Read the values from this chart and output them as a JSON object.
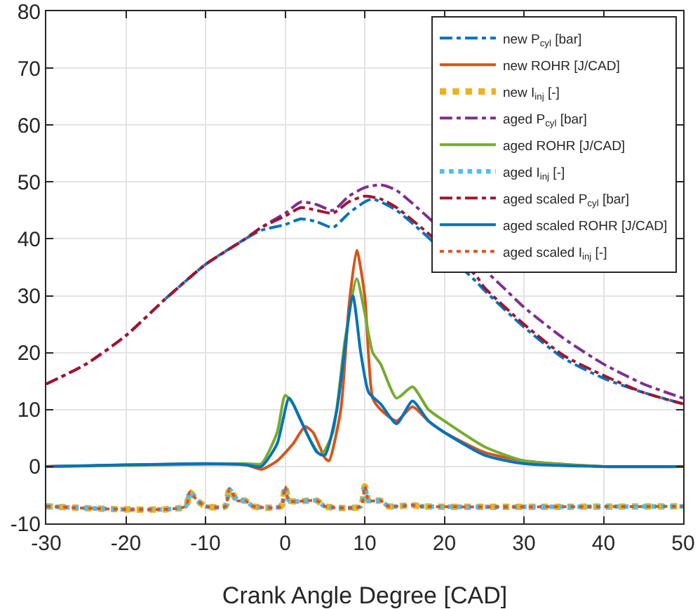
{
  "chart_data": {
    "type": "line",
    "xlabel": "Crank Angle Degree [CAD]",
    "xlim": [
      -30,
      50
    ],
    "xticks": [
      -30,
      -20,
      -10,
      0,
      10,
      20,
      30,
      40,
      50
    ],
    "ylim": [
      -10,
      80
    ],
    "yticks": [
      -10,
      0,
      10,
      20,
      30,
      40,
      50,
      60,
      70,
      80
    ],
    "grid": true,
    "legend": "top right",
    "marker": "none",
    "series": [
      {
        "name": "new P$_{cyl}$ [bar]",
        "color": "#0072bd",
        "line_style": "dashdot",
        "x": [
          -15,
          -10,
          -5,
          -3,
          0,
          2,
          4,
          6,
          8,
          10,
          11,
          14,
          24,
          25,
          30,
          35,
          40,
          45,
          50
        ],
        "values": [
          29.5,
          35.5,
          40,
          41.5,
          42.5,
          43.5,
          43,
          42,
          44.5,
          46.5,
          47,
          45,
          32.5,
          31,
          24.5,
          19,
          15.5,
          13,
          11
        ]
      },
      {
        "name": "new ROHR [J/CAD]",
        "color": "#d95319",
        "line_style": "solid",
        "x": [
          -30,
          -5,
          -3,
          -1,
          1,
          2.5,
          3.5,
          5,
          5.5,
          7,
          8,
          9,
          10,
          11,
          12,
          14,
          16,
          18,
          20,
          25,
          30,
          40,
          50
        ],
        "values": [
          0,
          0.3,
          -0.5,
          1,
          4,
          7,
          6,
          1.5,
          1,
          10,
          28,
          38,
          30,
          12,
          10,
          8,
          10.5,
          8,
          6,
          2.5,
          1,
          0,
          0
        ]
      },
      {
        "name": "new I$_{inj}$ [-]",
        "color": "#edb120",
        "line_style": "dotted",
        "x": [
          -30,
          -12.5,
          -12,
          -11,
          -10,
          -7.5,
          -7,
          -6,
          -5,
          -4,
          -0.5,
          0,
          0.5,
          4,
          5,
          9.5,
          10,
          10.5,
          12,
          13,
          16,
          17,
          50
        ],
        "values": [
          -7,
          -7,
          -4.5,
          -6,
          -7,
          -7,
          -4,
          -6,
          -6,
          -7,
          -7,
          -3.5,
          -6,
          -6,
          -7,
          -7,
          -3.5,
          -6,
          -6,
          -7,
          -6.8,
          -7,
          -7
        ]
      },
      {
        "name": "aged P$_{cyl}$ [bar]",
        "color": "#7e2f8e",
        "line_style": "dashdot",
        "x": [
          -30,
          -25,
          -20,
          -15,
          -10,
          -5,
          -3,
          0,
          2,
          4,
          6,
          8,
          10,
          12,
          14,
          27,
          30,
          35,
          40,
          45,
          50
        ],
        "values": [
          14.5,
          18,
          23,
          29.5,
          35.5,
          40,
          42,
          44.5,
          46.5,
          46,
          45,
          47.5,
          49,
          49.5,
          48.5,
          32,
          28,
          22.5,
          18,
          14.5,
          12
        ]
      },
      {
        "name": "aged ROHR [J/CAD]",
        "color": "#77ac30",
        "line_style": "solid",
        "x": [
          -30,
          -5,
          -3,
          -1,
          0,
          1,
          3,
          4.5,
          6,
          7.5,
          9,
          10,
          11,
          12,
          14,
          16,
          18,
          20,
          25,
          30,
          40,
          50
        ],
        "values": [
          0,
          0.5,
          0.5,
          6,
          12.5,
          11,
          5,
          2,
          6,
          22,
          33,
          27,
          20,
          18,
          12,
          14,
          10,
          8,
          3.5,
          1,
          0,
          0
        ]
      },
      {
        "name": "aged I$_{inj}$ [-]",
        "color": "#4dbeee",
        "line_style": "dotted",
        "x": [
          -30,
          -12.5,
          -12,
          -11,
          -10,
          -7.5,
          -7,
          -6,
          -5,
          -4,
          -0.5,
          0,
          0.5,
          4,
          5,
          9.5,
          10,
          10.5,
          12,
          13,
          16,
          17,
          50
        ],
        "values": [
          -7,
          -7,
          -4.5,
          -6,
          -7,
          -7,
          -4,
          -6,
          -6,
          -7,
          -7,
          -3.5,
          -6,
          -6,
          -7,
          -7,
          -3.5,
          -6,
          -6,
          -7,
          -6.8,
          -7,
          -7
        ]
      },
      {
        "name": "aged scaled P$_{cyl}$ [bar]",
        "color": "#a2142f",
        "line_style": "dashdot",
        "x": [
          -30,
          -25,
          -20,
          -15,
          -10,
          -5,
          -3,
          0,
          2,
          4,
          6,
          8,
          10,
          12,
          14,
          24,
          25,
          30,
          35,
          40,
          45,
          50
        ],
        "values": [
          14.5,
          18,
          23,
          29.5,
          35.5,
          40,
          42,
          44,
          45.5,
          45,
          44.5,
          46.5,
          47.5,
          47,
          45.5,
          33.5,
          31.5,
          25,
          19.5,
          16,
          13,
          11
        ]
      },
      {
        "name": "aged scaled ROHR [J/CAD]",
        "color": "#0072bd",
        "line_style": "solid",
        "x": [
          -30,
          -10,
          -5,
          -3,
          -1,
          0.5,
          2,
          4,
          5,
          6.5,
          8.5,
          9.5,
          10.5,
          12,
          14,
          16,
          18,
          20,
          25,
          30,
          40,
          50
        ],
        "values": [
          0,
          0.5,
          0.3,
          0,
          4,
          12,
          8,
          2.5,
          2,
          10,
          30,
          20,
          13,
          11,
          7.5,
          11.5,
          8,
          6,
          2,
          0.5,
          0,
          0
        ]
      },
      {
        "name": "aged scaled I$_{inj}$ [-]",
        "color": "#d95319",
        "line_style": "dotted",
        "x": [
          -30,
          -12.5,
          -12,
          -11,
          -10,
          -7.5,
          -7,
          -6,
          -5,
          -4,
          -0.5,
          0,
          0.5,
          4,
          5,
          9.5,
          10,
          10.5,
          12,
          13,
          16,
          17,
          50
        ],
        "values": [
          -7,
          -7,
          -4.5,
          -6,
          -7,
          -7,
          -4,
          -6,
          -6,
          -7,
          -7,
          -3.5,
          -6,
          -6,
          -7,
          -7,
          -3.5,
          -6,
          -6,
          -7,
          -6.8,
          -7,
          -7
        ]
      }
    ]
  }
}
